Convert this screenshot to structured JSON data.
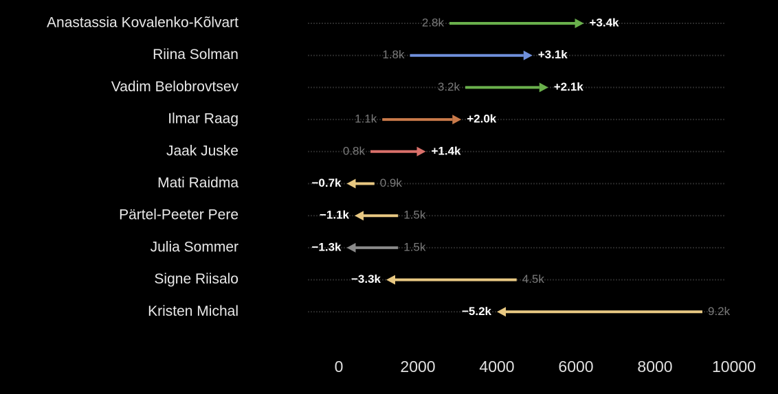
{
  "chart_data": {
    "type": "arrow",
    "categories": [
      "Anastassia Kovalenko-Kõlvart",
      "Riina Solman",
      "Vadim Belobrovtsev",
      "Ilmar Raag",
      "Jaak Juske",
      "Mati Raidma",
      "Pärtel-Peeter Pere",
      "Julia Sommer",
      "Signe Riisalo",
      "Kristen Michal"
    ],
    "values": [
      2800,
      1800,
      3200,
      1100,
      800,
      900,
      1500,
      1500,
      4500,
      9200
    ],
    "value_labels": [
      "2.8k",
      "1.8k",
      "3.2k",
      "1.1k",
      "0.8k",
      "0.9k",
      "1.5k",
      "1.5k",
      "4.5k",
      "9.2k"
    ],
    "changes": [
      3400,
      3100,
      2100,
      2000,
      1400,
      -700,
      -1100,
      -1300,
      -3300,
      -5200
    ],
    "change_labels": [
      "+3.4k",
      "+3.1k",
      "+2.1k",
      "+2.0k",
      "+1.4k",
      "−0.7k",
      "−1.1k",
      "−1.3k",
      "−3.3k",
      "−5.2k"
    ],
    "colors": [
      "#6ab04c",
      "#6f8fdb",
      "#6ab04c",
      "#c97a4a",
      "#d9706a",
      "#e8c882",
      "#e8c882",
      "#8a8a8a",
      "#e8c882",
      "#e8c882"
    ],
    "xlim": [
      -800,
      10600
    ],
    "xticks": [
      0,
      2000,
      4000,
      6000,
      8000,
      10000
    ]
  }
}
